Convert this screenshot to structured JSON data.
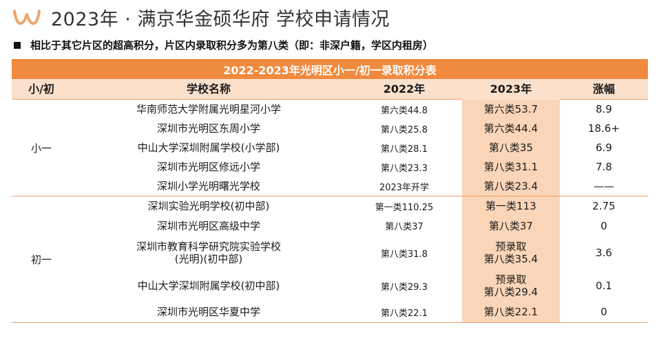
{
  "header": {
    "logo_icon": "double-u-logo-icon",
    "title": "2023年 · 满京华金硕华府 学校申请情况"
  },
  "note": "相比于其它片区的超高积分，片区内录取积分多为第八类（即：非深户籍，学区内租房）",
  "table": {
    "banner": "2022-2023年光明区小一/初一录取积分表",
    "headers": [
      "小/初",
      "学校名称",
      "2022年",
      "2023年",
      "涨幅"
    ],
    "groups": [
      {
        "label": "小一",
        "rows": [
          {
            "school": [
              "华南师范大学附属光明星河小学"
            ],
            "y2022": "第六类44.8",
            "y2023": [
              "第六类53.7"
            ],
            "change": "8.9"
          },
          {
            "school": [
              "深圳市光明区东周小学"
            ],
            "y2022": "第八类25.8",
            "y2023": [
              "第六类44.4"
            ],
            "change": "18.6+"
          },
          {
            "school": [
              "中山大学深圳附属学校(小学部)"
            ],
            "y2022": "第八类28.1",
            "y2023": [
              "第八类35"
            ],
            "change": "6.9"
          },
          {
            "school": [
              "深圳市光明区修远小学"
            ],
            "y2022": "第八类23.3",
            "y2023": [
              "第八类31.1"
            ],
            "change": "7.8"
          },
          {
            "school": [
              "深圳小学光明曙光学校"
            ],
            "y2022": "2023年开学",
            "y2023": [
              "第八类23.4"
            ],
            "change": "——"
          }
        ]
      },
      {
        "label": "初一",
        "rows": [
          {
            "school": [
              "深圳实验光明学校(初中部)"
            ],
            "y2022": "第一类110.25",
            "y2023": [
              "第一类113"
            ],
            "change": "2.75"
          },
          {
            "school": [
              "深圳市光明区高级中学"
            ],
            "y2022": "第八类37",
            "y2023": [
              "第八类37"
            ],
            "change": "0"
          },
          {
            "school": [
              "深圳市教育科学研究院实验学校",
              "(光明)(初中部)"
            ],
            "y2022": "第八类31.8",
            "y2023": [
              "预录取",
              "第八类35.4"
            ],
            "change": "3.6"
          },
          {
            "school": [
              "中山大学深圳附属学校(初中部)"
            ],
            "y2022": "第八类29.3",
            "y2023": [
              "预录取",
              "第八类29.4"
            ],
            "change": "0.1"
          },
          {
            "school": [
              "深圳市光明区华夏中学"
            ],
            "y2022": "第八类22.1",
            "y2023": [
              "第八类22.1"
            ],
            "change": "0"
          }
        ]
      }
    ]
  }
}
